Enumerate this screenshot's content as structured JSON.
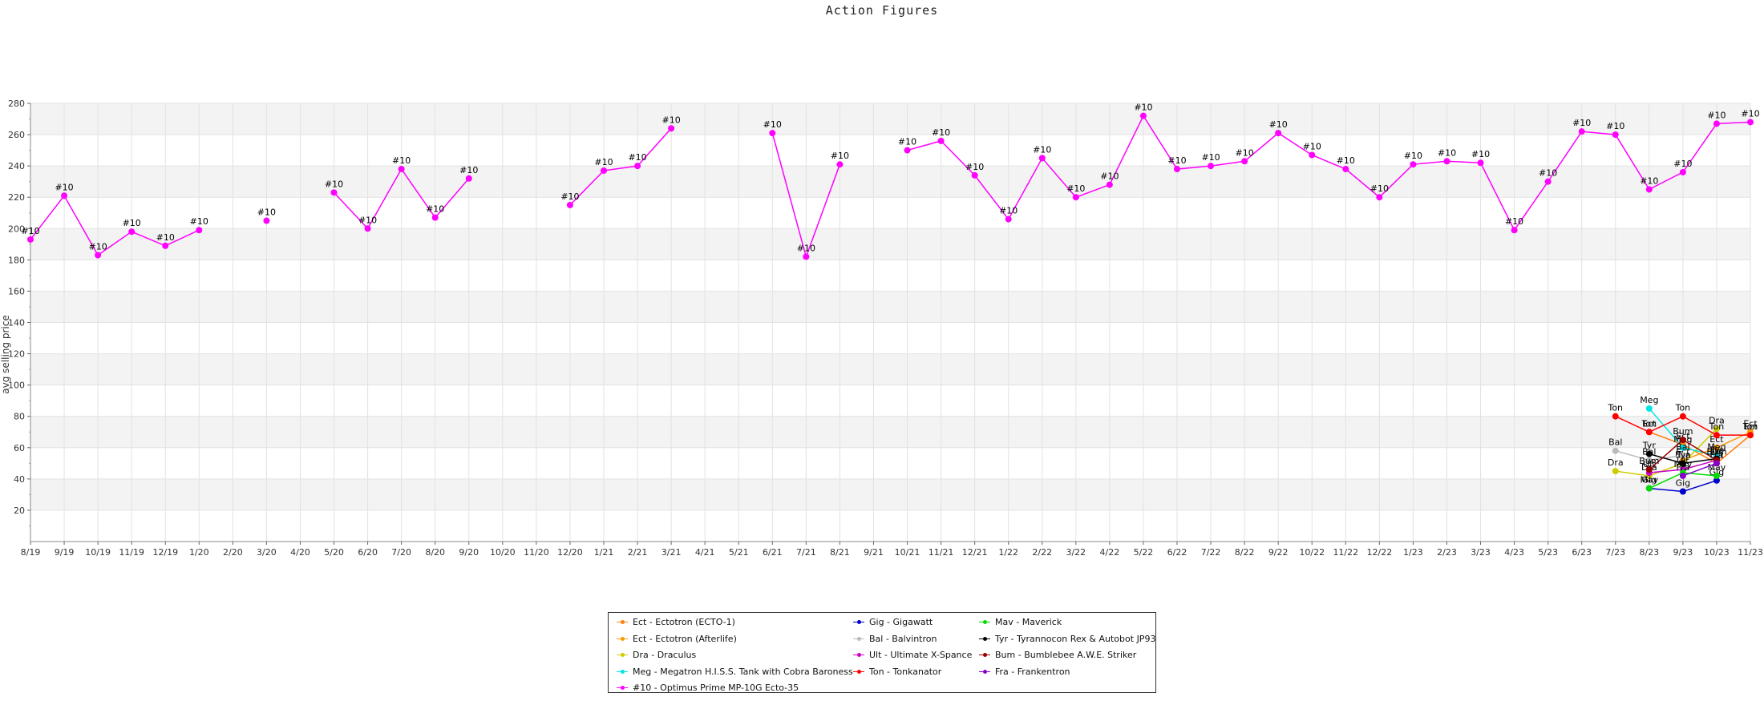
{
  "chart_data": {
    "type": "line",
    "title": "Action Figures",
    "xlabel": "",
    "ylabel": "avg selling price",
    "ylim": [
      0,
      280
    ],
    "yticks": [
      20,
      40,
      60,
      80,
      100,
      120,
      140,
      160,
      180,
      200,
      220,
      240,
      260,
      280
    ],
    "grid": true,
    "legend_position": "bottom-center",
    "categories": [
      "8/19",
      "9/19",
      "10/19",
      "11/19",
      "12/19",
      "1/20",
      "2/20",
      "3/20",
      "4/20",
      "5/20",
      "6/20",
      "7/20",
      "8/20",
      "9/20",
      "10/20",
      "11/20",
      "12/20",
      "1/21",
      "2/21",
      "3/21",
      "4/21",
      "5/21",
      "6/21",
      "7/21",
      "8/21",
      "9/21",
      "10/21",
      "11/21",
      "12/21",
      "1/22",
      "2/22",
      "3/22",
      "4/22",
      "5/22",
      "6/22",
      "7/22",
      "8/22",
      "9/22",
      "10/22",
      "11/22",
      "12/22",
      "1/23",
      "2/23",
      "3/23",
      "4/23",
      "5/23",
      "6/23",
      "7/23",
      "8/23",
      "9/23",
      "10/23",
      "11/23"
    ],
    "series": [
      {
        "name": "Ect - Ectotron (ECTO-1)",
        "label": "Ect",
        "color": "#ff7f0e",
        "points": [
          [
            "8/23",
            70
          ],
          [
            "9/23",
            62
          ],
          [
            "10/23",
            50
          ],
          [
            "11/23",
            68
          ]
        ]
      },
      {
        "name": "Ect - Ectotron (Afterlife)",
        "label": "Ect",
        "color": "#ff9900",
        "points": [
          [
            "9/23",
            52
          ],
          [
            "10/23",
            60
          ],
          [
            "11/23",
            70
          ]
        ]
      },
      {
        "name": "Dra - Draculus",
        "label": "Dra",
        "color": "#cccc00",
        "points": [
          [
            "7/23",
            45
          ],
          [
            "8/23",
            42
          ],
          [
            "9/23",
            50
          ],
          [
            "10/23",
            72
          ]
        ]
      },
      {
        "name": "Meg - Megatron H.I.S.S. Tank with Cobra Baroness",
        "label": "Meg",
        "color": "#00e5e5",
        "points": [
          [
            "8/23",
            85
          ],
          [
            "9/23",
            60
          ],
          [
            "10/23",
            55
          ]
        ]
      },
      {
        "name": "#10 - Optimus Prime MP-10G Ecto-35",
        "label": "#10",
        "color": "#ff00ff",
        "points": [
          [
            "8/19",
            193
          ],
          [
            "9/19",
            221
          ],
          [
            "10/19",
            183
          ],
          [
            "11/19",
            198
          ],
          [
            "12/19",
            189
          ],
          [
            "1/20",
            199
          ],
          [
            "2/20",
            null
          ],
          [
            "3/20",
            205
          ],
          [
            "4/20",
            null
          ],
          [
            "5/20",
            223
          ],
          [
            "6/20",
            200
          ],
          [
            "7/20",
            238
          ],
          [
            "8/20",
            207
          ],
          [
            "9/20",
            232
          ],
          [
            "10/20",
            null
          ],
          [
            "11/20",
            null
          ],
          [
            "12/20",
            215
          ],
          [
            "1/21",
            237
          ],
          [
            "2/21",
            240
          ],
          [
            "3/21",
            264
          ],
          [
            "4/21",
            null
          ],
          [
            "5/21",
            null
          ],
          [
            "6/21",
            261
          ],
          [
            "7/21",
            182
          ],
          [
            "8/21",
            241
          ],
          [
            "9/21",
            null
          ],
          [
            "10/21",
            250
          ],
          [
            "11/21",
            256
          ],
          [
            "12/21",
            234
          ],
          [
            "1/22",
            206
          ],
          [
            "2/22",
            245
          ],
          [
            "3/22",
            220
          ],
          [
            "4/22",
            228
          ],
          [
            "5/22",
            272
          ],
          [
            "6/22",
            238
          ],
          [
            "7/22",
            240
          ],
          [
            "8/22",
            243
          ],
          [
            "9/22",
            261
          ],
          [
            "10/22",
            247
          ],
          [
            "11/22",
            238
          ],
          [
            "12/22",
            220
          ],
          [
            "1/23",
            241
          ],
          [
            "2/23",
            243
          ],
          [
            "3/23",
            242
          ],
          [
            "4/23",
            199
          ],
          [
            "5/23",
            230
          ],
          [
            "6/23",
            262
          ],
          [
            "7/23",
            260
          ],
          [
            "8/23",
            225
          ],
          [
            "9/23",
            236
          ],
          [
            "10/23",
            267
          ],
          [
            "11/23",
            268
          ]
        ]
      },
      {
        "name": "Gig - Gigawatt",
        "label": "Gig",
        "color": "#0000cc",
        "points": [
          [
            "8/23",
            34
          ],
          [
            "9/23",
            32
          ],
          [
            "10/23",
            39
          ]
        ]
      },
      {
        "name": "Bal - Balvintron",
        "label": "Bal",
        "color": "#bbbbbb",
        "points": [
          [
            "7/23",
            58
          ],
          [
            "8/23",
            52
          ],
          [
            "9/23",
            55
          ]
        ]
      },
      {
        "name": "Ult - Ultimate X-Spance",
        "label": "Ult",
        "color": "#cc00cc",
        "points": [
          [
            "8/23",
            44
          ],
          [
            "9/23",
            46
          ],
          [
            "10/23",
            52
          ]
        ]
      },
      {
        "name": "Ton - Tonkanator",
        "label": "Ton",
        "color": "#ff0000",
        "points": [
          [
            "7/23",
            80
          ],
          [
            "8/23",
            70
          ],
          [
            "9/23",
            80
          ],
          [
            "10/23",
            68
          ],
          [
            "11/23",
            68
          ]
        ]
      },
      {
        "name": "Mav - Maverick",
        "label": "Mav",
        "color": "#00dd00",
        "points": [
          [
            "8/23",
            34
          ],
          [
            "9/23",
            44
          ],
          [
            "10/23",
            42
          ]
        ]
      },
      {
        "name": "Tyr - Tyrannocon Rex & Autobot JP93",
        "label": "Tyr",
        "color": "#000000",
        "points": [
          [
            "8/23",
            56
          ],
          [
            "9/23",
            50
          ],
          [
            "10/23",
            53
          ]
        ]
      },
      {
        "name": "Bum - Bumblebee A.W.E. Striker",
        "label": "Bum",
        "color": "#990000",
        "points": [
          [
            "8/23",
            46
          ],
          [
            "9/23",
            65
          ],
          [
            "10/23",
            52
          ]
        ]
      },
      {
        "name": "Fra - Frankentron",
        "label": "Fra",
        "color": "#8800cc",
        "points": [
          [
            "9/23",
            42
          ],
          [
            "10/23",
            50
          ]
        ]
      }
    ]
  }
}
